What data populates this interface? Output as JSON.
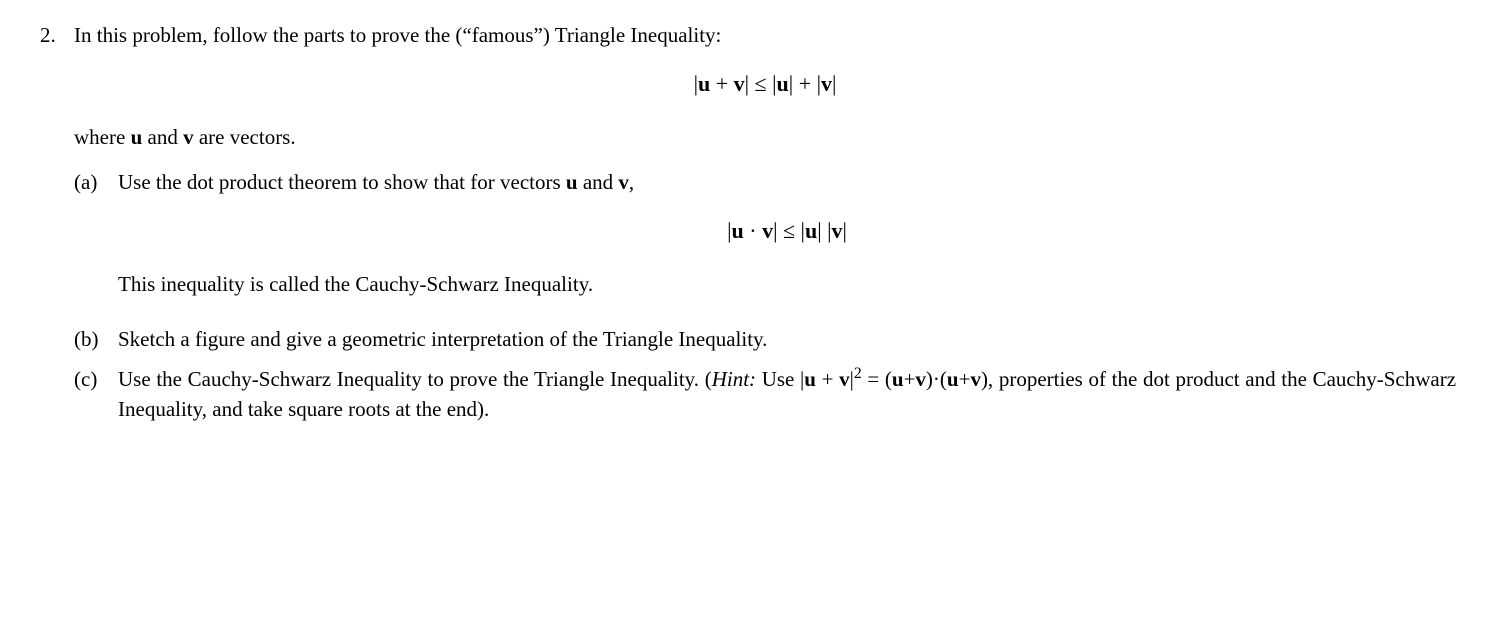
{
  "problem_number": "2.",
  "intro_prefix": "In this problem, follow the parts to prove the (“famous”) Triangle Inequality:",
  "triangle_ineq": {
    "lhs_bar": "|",
    "u": "u",
    "plus": " + ",
    "v": "v",
    "rhs_bar": "|",
    "leq": " ≤ ",
    "bar2": "|",
    "u2": "u",
    "bar3": "|",
    "plus2": " + ",
    "bar4": "|",
    "v2": "v",
    "bar5": "|"
  },
  "where_prefix": "where ",
  "where_u": "u",
  "where_and": " and ",
  "where_v": "v",
  "where_suffix": " are vectors.",
  "parts": {
    "a": {
      "label": "(a)",
      "text_prefix": "Use the dot product theorem to show that for vectors ",
      "u": "u",
      "and": " and ",
      "v": "v",
      "comma": ",",
      "cs_ineq": {
        "bar1": "|",
        "u": "u",
        "dot": " · ",
        "v": "v",
        "bar2": "|",
        "leq": " ≤ ",
        "bar3": "|",
        "u2": "u",
        "bar4": "| ",
        "bar5": "|",
        "v2": "v",
        "bar6": "|"
      },
      "note": "This inequality is called the Cauchy-Schwarz Inequality."
    },
    "b": {
      "label": "(b)",
      "text": "Sketch a figure and give a geometric interpretation of the Triangle Inequality."
    },
    "c": {
      "label": "(c)",
      "prefix": "Use the Cauchy-Schwarz Inequality to prove the Triangle Inequality.  (",
      "hint_label": "Hint:",
      "hint_use": " Use |",
      "u": "u",
      "plus": " + ",
      "v": "v",
      "bar_sq": "|",
      "sq": "2",
      "eq": " = (",
      "u2": "u",
      "plus2": "+",
      "v2": "v",
      "close_dot": ")·(",
      "u3": "u",
      "plus3": "+",
      "v3": "v",
      "tail": "), properties of the dot product and the Cauchy-Schwarz Inequality, and take square roots at the end)."
    }
  }
}
